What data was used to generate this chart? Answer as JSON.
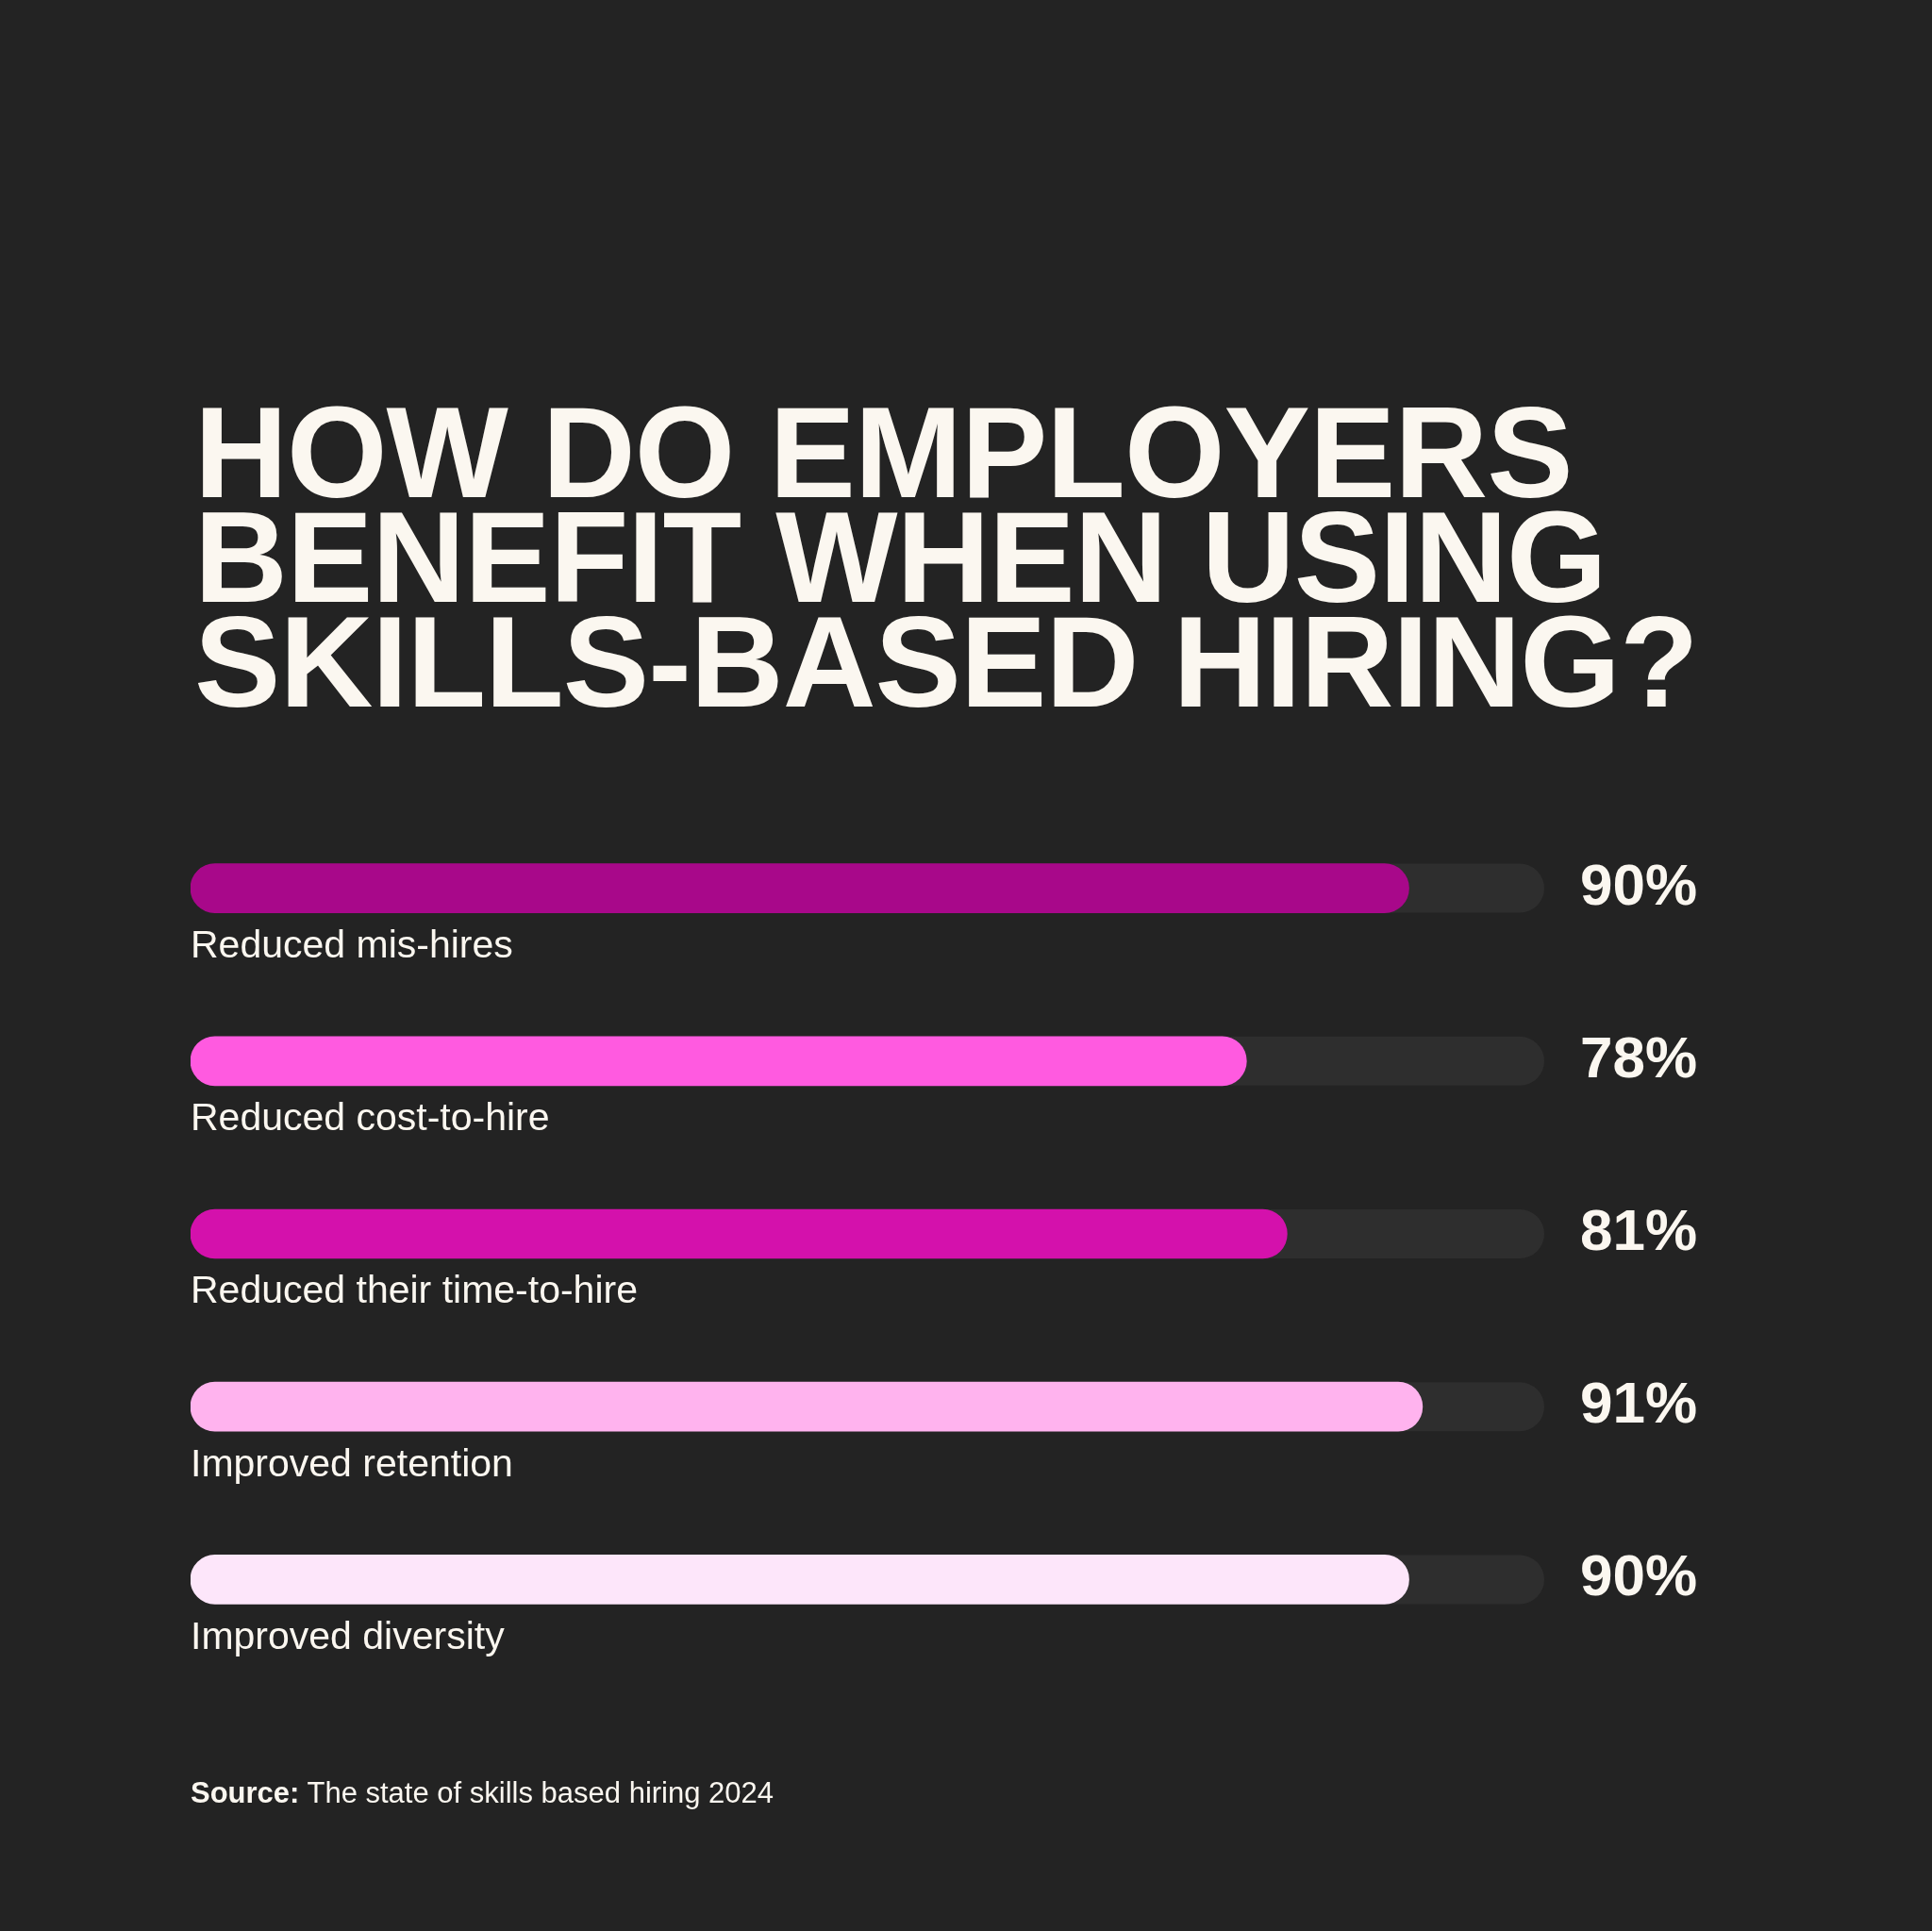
{
  "chart_data": {
    "type": "bar",
    "orientation": "horizontal",
    "title": "HOW DO EMPLOYERS BENEFIT WHEN USING SKILLS-BASED HIRING?",
    "categories": [
      "Reduced mis-hires",
      "Reduced cost-to-hire",
      "Reduced their time-to-hire",
      "Improved retention",
      "Improved diversity"
    ],
    "values": [
      90,
      78,
      81,
      91,
      90
    ],
    "colors": [
      "#a8088a",
      "#ff5ae0",
      "#d411ac",
      "#ffb3ee",
      "#fde6fa"
    ],
    "value_labels": [
      "90%",
      "78%",
      "81%",
      "91%",
      "90%"
    ],
    "xlim": [
      0,
      100
    ],
    "tick_labels": "y",
    "annotations": [
      "Source: The state of skills based hiring 2024"
    ]
  }
}
